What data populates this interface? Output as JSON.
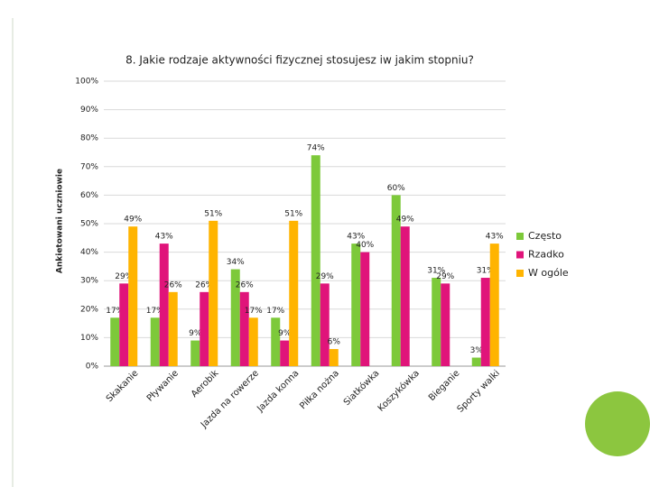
{
  "chart_data": {
    "type": "bar",
    "title": "8. Jakie rodzaje aktywności fizycznej stosujesz iw jakim stopniu?",
    "y_label": "Ankietowani uczniowie",
    "categories": [
      "Skakanie",
      "Pływanie",
      "Aerobik",
      "Jazda na rowerze",
      "Jazda konna",
      "Piłka nożna",
      "Siatkówka",
      "Koszykówka",
      "Bieganie",
      "Sporty walki"
    ],
    "series": [
      {
        "name": "Często",
        "color": "#7dc93a",
        "values": [
          17,
          17,
          9,
          34,
          17,
          74,
          43,
          60,
          31,
          3
        ],
        "value_labels": [
          "17%",
          "17%",
          "9%",
          "34%",
          "17%",
          "74%",
          "43%",
          "60%",
          "31%",
          "3%"
        ]
      },
      {
        "name": "Rzadko",
        "color": "#e0147a",
        "values": [
          29,
          43,
          26,
          26,
          9,
          29,
          40,
          49,
          29,
          31
        ],
        "value_labels": [
          "29%",
          "43%",
          "26%",
          "26%",
          "9%",
          "29%",
          "40%",
          "49%",
          "29%",
          "31%"
        ]
      },
      {
        "name": "W ogóle",
        "color": "#ffb400",
        "values": [
          49,
          26,
          51,
          17,
          51,
          6,
          null,
          null,
          null,
          43
        ],
        "value_labels": [
          "49%",
          "26%",
          "51%",
          "17%",
          "51%",
          "6%",
          null,
          null,
          null,
          "43%"
        ]
      }
    ],
    "ylim": [
      0,
      100
    ],
    "yticks": [
      {
        "value": 0,
        "label": "0%"
      },
      {
        "value": 10,
        "label": "10%"
      },
      {
        "value": 20,
        "label": "20%"
      },
      {
        "value": 30,
        "label": "30%"
      },
      {
        "value": 40,
        "label": "40%"
      },
      {
        "value": 50,
        "label": "50%"
      },
      {
        "value": 60,
        "label": "60%"
      },
      {
        "value": 70,
        "label": "70%"
      },
      {
        "value": 80,
        "label": "80%"
      },
      {
        "value": 90,
        "label": "90%"
      },
      {
        "value": 100,
        "label": "100%"
      }
    ],
    "grid": true,
    "legend": "right"
  }
}
